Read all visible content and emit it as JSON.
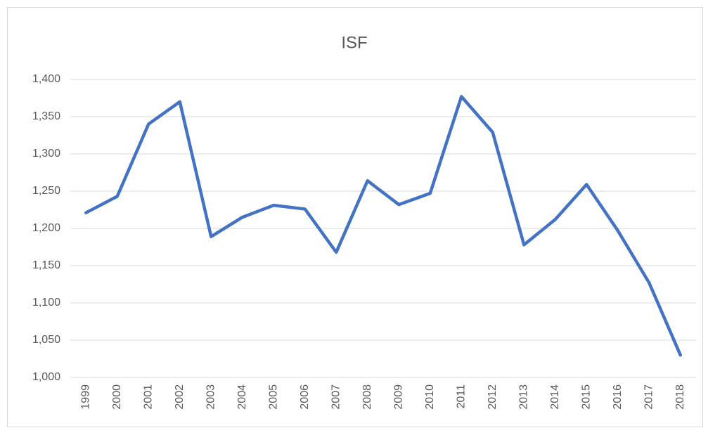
{
  "chart_data": {
    "type": "line",
    "title": "ISF",
    "categories": [
      "1999",
      "2000",
      "2001",
      "2002",
      "2003",
      "2004",
      "2005",
      "2006",
      "2007",
      "2008",
      "2009",
      "2010",
      "2011",
      "2012",
      "2013",
      "2014",
      "2015",
      "2016",
      "2017",
      "2018"
    ],
    "series": [
      {
        "name": "ISF",
        "color": "#4472c4",
        "values": [
          1221,
          1243,
          1340,
          1370,
          1189,
          1215,
          1231,
          1226,
          1168,
          1264,
          1232,
          1247,
          1377,
          1329,
          1178,
          1212,
          1259,
          1197,
          1127,
          1030
        ]
      }
    ],
    "ylim": [
      1000,
      1400
    ],
    "yticks": [
      {
        "value": 1000,
        "label": "1,000"
      },
      {
        "value": 1050,
        "label": "1,050"
      },
      {
        "value": 1100,
        "label": "1,100"
      },
      {
        "value": 1150,
        "label": "1,150"
      },
      {
        "value": 1200,
        "label": "1,200"
      },
      {
        "value": 1250,
        "label": "1,250"
      },
      {
        "value": 1300,
        "label": "1,300"
      },
      {
        "value": 1350,
        "label": "1,350"
      },
      {
        "value": 1400,
        "label": "1,400"
      }
    ],
    "grid": true
  }
}
